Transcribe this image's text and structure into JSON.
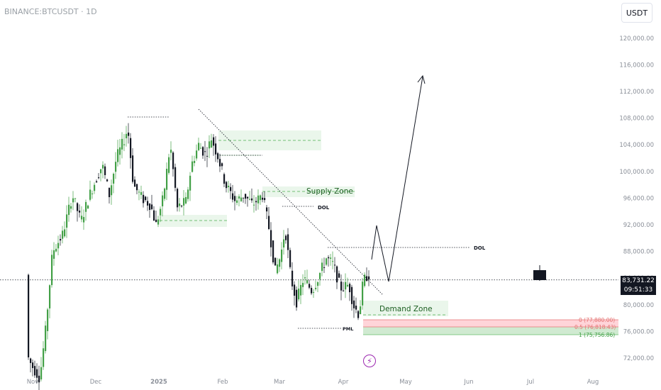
{
  "header": {
    "symbol": "BINANCE:BTCUSDT · 1D",
    "currency_label": "USDT"
  },
  "price_badge": {
    "price": "83,731.22",
    "countdown": "09:51:33"
  },
  "icons": {
    "event": "lightning-bolt-icon"
  },
  "chart_data": {
    "type": "candlestick",
    "ylim": [
      70000,
      122000
    ],
    "y_ticks": [
      "72,000.00",
      "76,000.00",
      "80,000.00",
      "84,000.00",
      "88,000.00",
      "92,000.00",
      "96,000.00",
      "100,000.00",
      "104,000.00",
      "108,000.00",
      "112,000.00",
      "116,000.00",
      "120,000.00"
    ],
    "y_tick_values": [
      72000,
      76000,
      80000,
      84000,
      88000,
      92000,
      96000,
      100000,
      104000,
      108000,
      112000,
      116000,
      120000
    ],
    "x_ticks": [
      "Nov",
      "Dec",
      "2025",
      "Feb",
      "Mar",
      "Apr",
      "May",
      "Jun",
      "Jul",
      "Aug"
    ],
    "current_price": 83731.22,
    "annotations": {
      "supply_zone": "Supply Zone",
      "demand_zone": "Demand Zone",
      "dol_labels": [
        "DOL",
        "DOL"
      ],
      "pml": "PML",
      "fib_levels": [
        {
          "level": "0",
          "price": "77,880.00",
          "label": "0 (77,880.00)"
        },
        {
          "level": "0.5",
          "price": "76,818.43",
          "label": "0.5 (76,818.43)"
        },
        {
          "level": "1",
          "price": "75,756.86",
          "label": "1 (75,756.86)"
        }
      ]
    },
    "colors": {
      "up": "#26a69a",
      "down": "#131722",
      "zone": "#c8e6c9",
      "fib_red": "#ef9a9a",
      "fib_green": "#a5d6a7"
    }
  }
}
